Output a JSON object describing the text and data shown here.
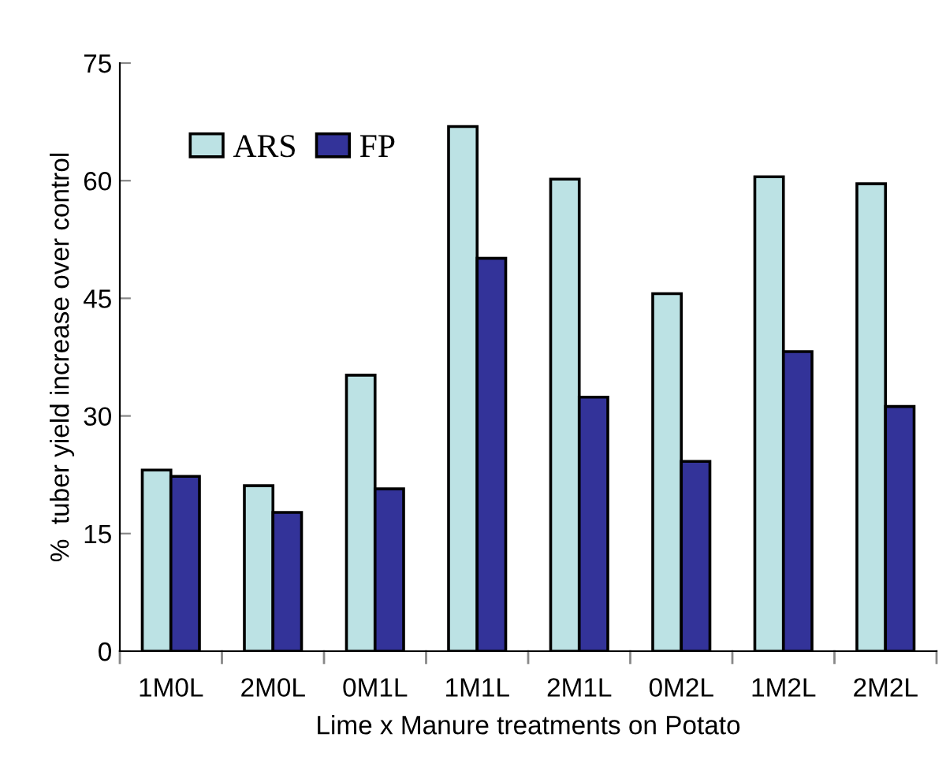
{
  "chart_data": {
    "type": "bar",
    "xlabel": "Lime x Manure treatments on Potato",
    "ylabel": "%  tuber yield increase over control",
    "categories": [
      "1M0L",
      "2M0L",
      "0M1L",
      "1M1L",
      "2M1L",
      "0M2L",
      "1M2L",
      "2M2L"
    ],
    "series": [
      {
        "name": "ARS",
        "color": "#bce2e4",
        "values": [
          23.1,
          21.1,
          35.2,
          66.9,
          60.2,
          45.6,
          60.5,
          59.6
        ]
      },
      {
        "name": "FP",
        "color": "#333399",
        "values": [
          22.3,
          17.7,
          20.7,
          50.1,
          32.4,
          24.2,
          38.2,
          31.2
        ]
      }
    ],
    "ylim": [
      0,
      75
    ],
    "yticks": [
      0,
      15,
      30,
      45,
      60,
      75
    ],
    "grid": false,
    "legend": "top left"
  }
}
